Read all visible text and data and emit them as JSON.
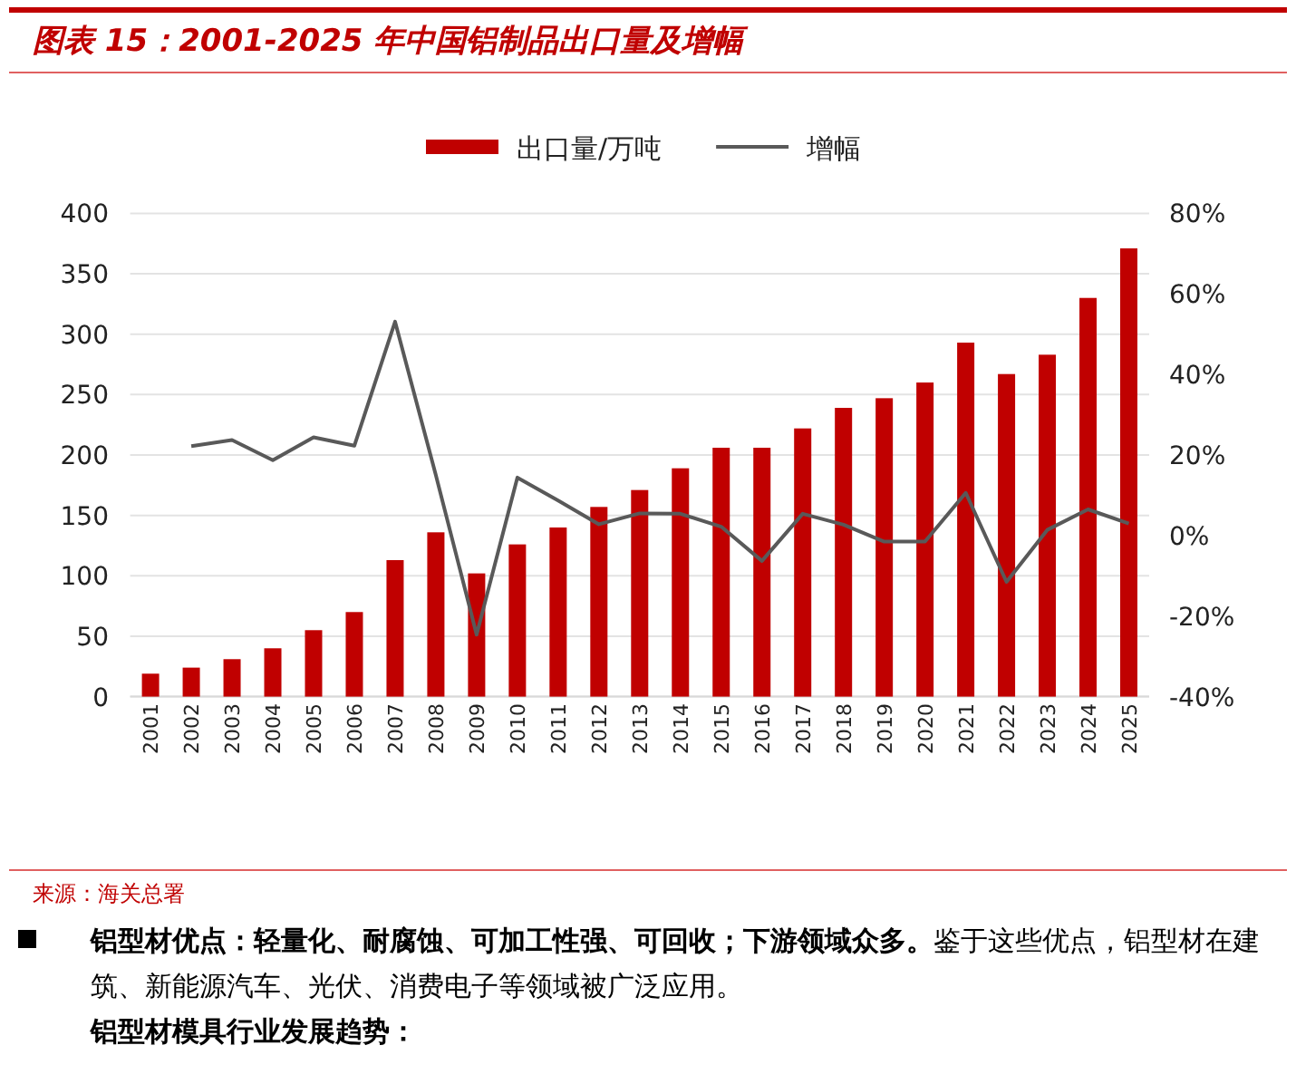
{
  "chart_data": {
    "type": "bar",
    "title": "图表 15：2001-2025 年中国铝制品出口量及增幅",
    "categories": [
      "2001",
      "2002",
      "2003",
      "2004",
      "2005",
      "2006",
      "2007",
      "2008",
      "2009",
      "2010",
      "2011",
      "2012",
      "2013",
      "2014",
      "2015",
      "2016",
      "2017",
      "2018",
      "2019",
      "2020",
      "2021",
      "2022",
      "2023",
      "2024",
      "2025"
    ],
    "series": [
      {
        "name": "出口量/万吨",
        "color": "#c00000",
        "values": [
          19,
          24,
          31,
          40,
          55,
          70,
          113,
          136,
          102,
          126,
          140,
          157,
          171,
          189,
          206,
          206,
          222,
          239,
          247,
          260,
          293,
          267,
          283,
          330,
          371
        ]
      },
      {
        "name": "增幅",
        "type": "line",
        "axis": "y2",
        "color": "#595959",
        "values": [
          null,
          22.2,
          23.7,
          18.7,
          24.4,
          22.3,
          53.1,
          15,
          -24.6,
          14.4,
          8.7,
          2.8,
          5.5,
          5.4,
          2.2,
          -6.3,
          5.4,
          2.7,
          -1.5,
          -1.5,
          10.6,
          -11.5,
          1.4,
          6.5,
          3
        ]
      }
    ],
    "ylim": [
      0,
      400
    ],
    "yticks": [
      0,
      50,
      100,
      150,
      200,
      250,
      300,
      350,
      400
    ],
    "y2lim": [
      -40,
      80
    ],
    "y2ticks": [
      {
        "value": -40,
        "label": "-40%"
      },
      {
        "value": -20,
        "label": "-20%"
      },
      {
        "value": 0,
        "label": "0%"
      },
      {
        "value": 20,
        "label": "20%"
      },
      {
        "value": 40,
        "label": "40%"
      },
      {
        "value": 60,
        "label": "60%"
      },
      {
        "value": 80,
        "label": "80%"
      }
    ],
    "grid": "y",
    "legend": "top",
    "annotations": [
      "来源：海关总署",
      "铝型材优点：轻量化、耐腐蚀、可加工性强、可回收；下游领域众多。",
      "鉴于这些优点，铝型材在建筑、新能源汽车、光伏、消费电子等领域被广泛应用。",
      "铝型材模具行业发展趋势："
    ]
  }
}
